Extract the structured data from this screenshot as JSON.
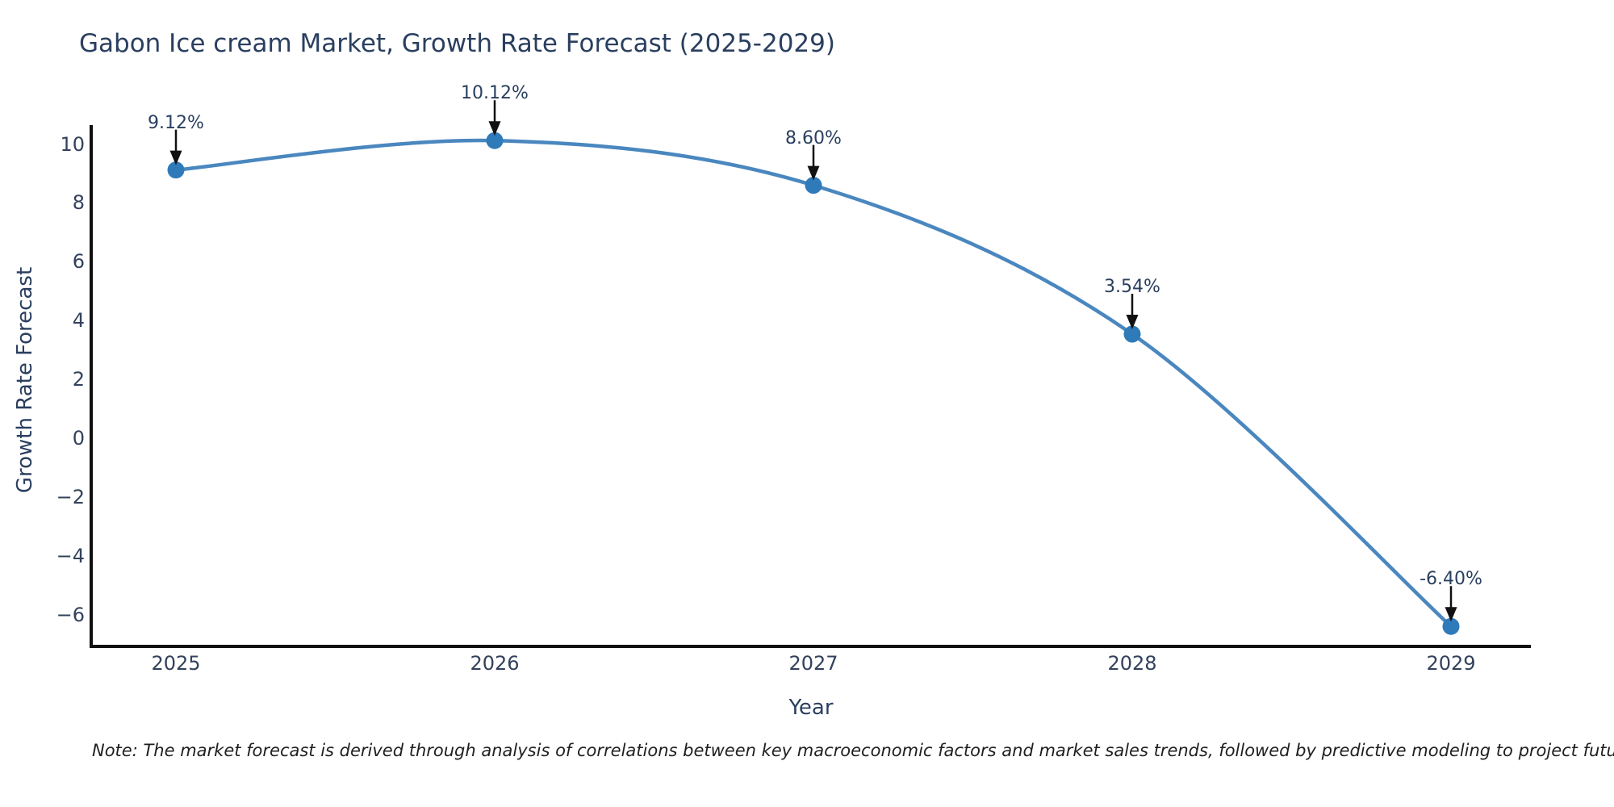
{
  "title": "Gabon Ice cream Market, Growth Rate Forecast (2025-2029)",
  "axes": {
    "x_label": "Year",
    "y_label": "Growth Rate Forecast"
  },
  "note": "Note: The market forecast is derived through analysis of correlations between key macroeconomic factors and market sales trends, followed by predictive modeling to project future sales",
  "colors": {
    "line": "#4a87bf",
    "marker": "#2f7ab9",
    "axis": "#111111",
    "arrow": "#111111",
    "title_text": "#2a3f5f",
    "tick_text": "#33415c",
    "note_text": "#1f1f1f",
    "background": "#ffffff"
  },
  "chart_data": {
    "type": "line",
    "title": "Gabon Ice cream Market, Growth Rate Forecast (2025-2029)",
    "xlabel": "Year",
    "ylabel": "Growth Rate Forecast",
    "x": [
      2025,
      2026,
      2027,
      2028,
      2029
    ],
    "values": [
      9.12,
      10.12,
      8.6,
      3.54,
      -6.4
    ],
    "labels": [
      "9.12%",
      "10.12%",
      "8.60%",
      "3.54%",
      "-6.40%"
    ],
    "xtick_labels": [
      "2025",
      "2026",
      "2027",
      "2028",
      "2029"
    ],
    "yticks": [
      10,
      8,
      6,
      4,
      2,
      0,
      -2,
      -4,
      -6
    ],
    "ytick_labels": [
      "10",
      "8",
      "6",
      "4",
      "2",
      "0",
      "−2",
      "−4",
      "−6"
    ],
    "ylim": [
      -7.1,
      10.6
    ],
    "grid": false,
    "legend": null,
    "line_shape": "spline",
    "marker": "circle",
    "annotations": "black arrows pointing down to each data point from its percentage label"
  }
}
